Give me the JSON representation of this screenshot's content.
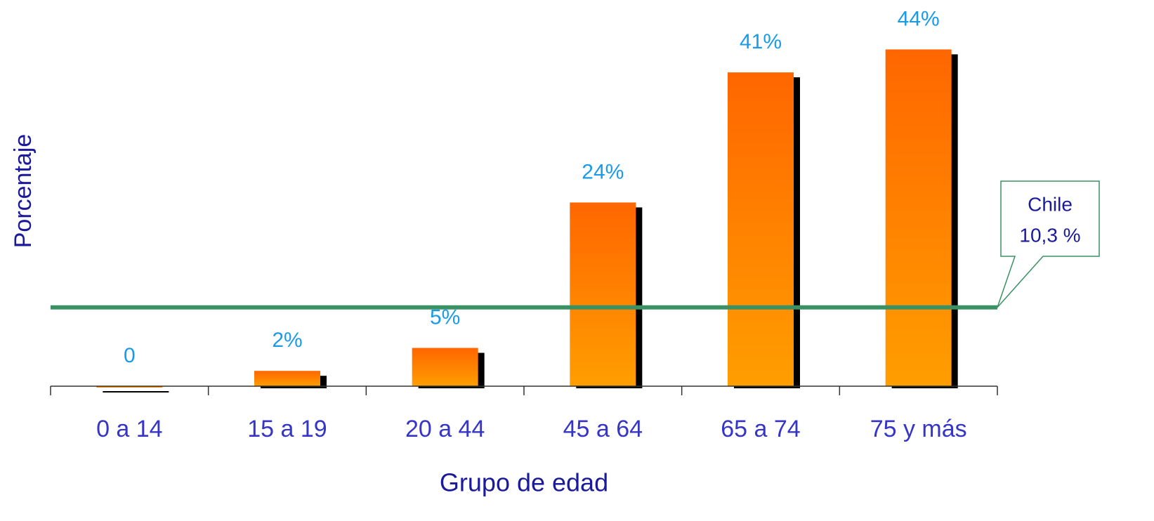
{
  "chart_data": {
    "type": "bar",
    "x_label": "Grupo de edad",
    "y_label": "Porcentaje",
    "categories": [
      "0 a 14",
      "15 a 19",
      "20 a 44",
      "45 a 64",
      "65 a 74",
      "75 y más"
    ],
    "values": [
      0,
      2,
      5,
      24,
      41,
      44
    ],
    "value_labels": [
      "0",
      "2%",
      "5%",
      "24%",
      "41%",
      "44%"
    ],
    "color": "#ff6600",
    "ylim": [
      0,
      50
    ],
    "reference": {
      "value": 10.3,
      "color": "#3a9163",
      "lines": [
        "Chile",
        "10,3 %"
      ]
    }
  }
}
